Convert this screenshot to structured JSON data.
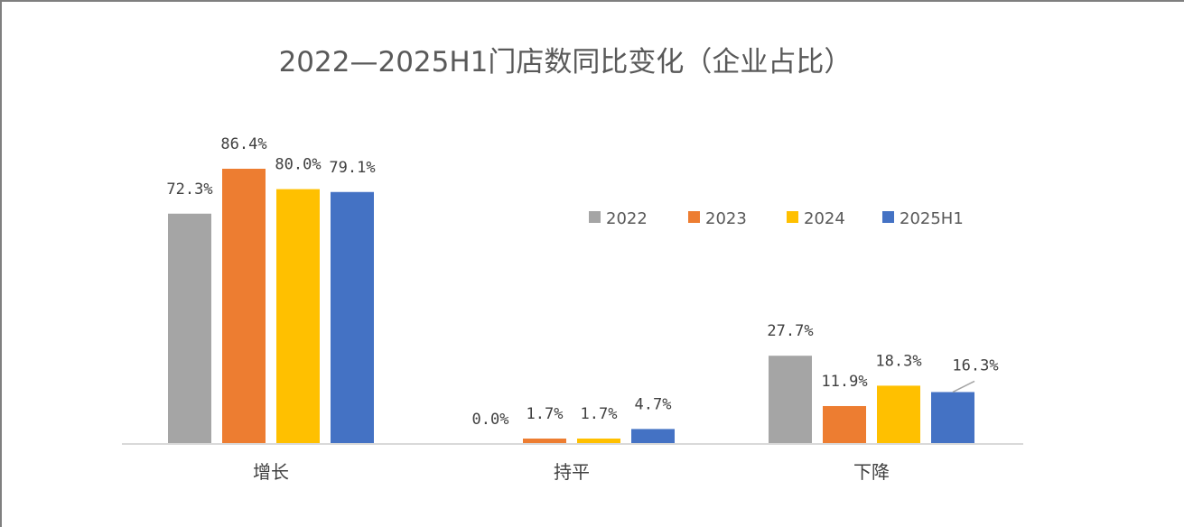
{
  "chart_data": {
    "type": "bar",
    "title": "2022—2025H1门店数同比变化（企业占比）",
    "categories": [
      "增长",
      "持平",
      "下降"
    ],
    "series": [
      {
        "name": "2022",
        "color": "#a5a5a5",
        "values": [
          72.3,
          0.0,
          27.7
        ],
        "labels": [
          "72.3%",
          "0.0%",
          "27.7%"
        ]
      },
      {
        "name": "2023",
        "color": "#ed7d31",
        "values": [
          86.4,
          1.7,
          11.9
        ],
        "labels": [
          "86.4%",
          "1.7%",
          "11.9%"
        ]
      },
      {
        "name": "2024",
        "color": "#ffc000",
        "values": [
          80.0,
          1.7,
          18.3
        ],
        "labels": [
          "80.0%",
          "1.7%",
          "18.3%"
        ]
      },
      {
        "name": "2025H1",
        "color": "#4472c4",
        "values": [
          79.1,
          4.7,
          16.3
        ],
        "labels": [
          "79.1%",
          "4.7%",
          "16.3%"
        ]
      }
    ],
    "ylim": [
      0,
      100
    ],
    "grid": false,
    "legend": "top-right"
  }
}
